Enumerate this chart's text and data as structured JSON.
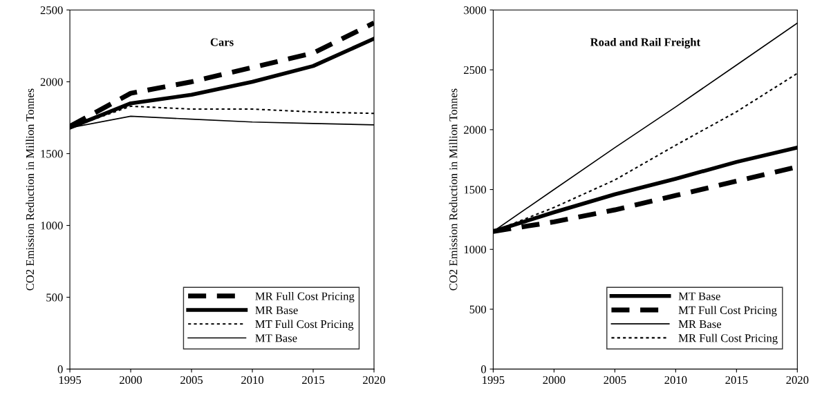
{
  "chart_data": [
    {
      "type": "line",
      "title": "Cars",
      "ylabel": "CO2 Emission Reduction in Million Tonnes",
      "x": [
        1995,
        2000,
        2005,
        2010,
        2015,
        2020
      ],
      "xlim": [
        1995,
        2020
      ],
      "xticks": [
        1995,
        2000,
        2005,
        2010,
        2015,
        2020
      ],
      "ylim": [
        0,
        2500
      ],
      "yticks": [
        0,
        500,
        1000,
        1500,
        2000,
        2500
      ],
      "grid": false,
      "legend": "bottom right",
      "marker": "none",
      "series": [
        {
          "name": "MR Full Cost Pricing",
          "color": "#000000",
          "line_style": "dashed",
          "values": [
            1690,
            1920,
            2000,
            2100,
            2200,
            2410
          ]
        },
        {
          "name": "MR Base",
          "color": "#000000",
          "line_style": "solid",
          "values": [
            1680,
            1850,
            1910,
            2000,
            2110,
            2300
          ]
        },
        {
          "name": "MT Full Cost Pricing",
          "color": "#000000",
          "line_style": "dotted",
          "values": [
            1680,
            1830,
            1810,
            1810,
            1790,
            1780
          ]
        },
        {
          "name": "MT Base",
          "color": "#000000",
          "line_style": "solid",
          "values": [
            1680,
            1760,
            1740,
            1720,
            1710,
            1700
          ]
        }
      ]
    },
    {
      "type": "line",
      "title": "Road and Rail Freight",
      "ylabel": "CO2 Emission Reduction in Million Tonnes",
      "x": [
        1995,
        2000,
        2005,
        2010,
        2015,
        2020
      ],
      "xlim": [
        1995,
        2020
      ],
      "xticks": [
        1995,
        2000,
        2005,
        2010,
        2015,
        2020
      ],
      "ylim": [
        0,
        3000
      ],
      "yticks": [
        0,
        500,
        1000,
        1500,
        2000,
        2500,
        3000
      ],
      "grid": false,
      "legend": "bottom right",
      "marker": "none",
      "series": [
        {
          "name": "MT Base",
          "color": "#000000",
          "line_style": "solid",
          "values": [
            1150,
            1310,
            1460,
            1590,
            1730,
            1850
          ]
        },
        {
          "name": "MT Full Cost Pricing",
          "color": "#000000",
          "line_style": "dashed",
          "values": [
            1150,
            1230,
            1330,
            1450,
            1570,
            1690
          ]
        },
        {
          "name": "MR Base",
          "color": "#000000",
          "line_style": "solid",
          "values": [
            1150,
            1500,
            1850,
            2190,
            2540,
            2890
          ]
        },
        {
          "name": "MR Full Cost Pricing",
          "color": "#000000",
          "line_style": "dotted",
          "values": [
            1150,
            1350,
            1580,
            1870,
            2150,
            2470
          ]
        }
      ]
    }
  ]
}
